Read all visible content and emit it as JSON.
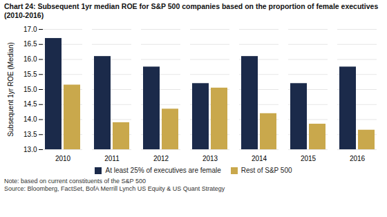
{
  "chart_data": {
    "type": "bar",
    "title": "Chart 24: Subsequent 1yr median ROE for S&P 500 companies based on the proportion of female executives (2010-2016)",
    "ylabel": "Subsequent 1yr ROE (Median)",
    "categories": [
      "2010",
      "2011",
      "2012",
      "2013",
      "2014",
      "2015",
      "2016"
    ],
    "series": [
      {
        "name": "At least 25% of executives are female",
        "color": "#1b2a4a",
        "values": [
          16.7,
          16.1,
          15.75,
          15.2,
          16.1,
          15.2,
          15.75
        ]
      },
      {
        "name": "Rest of S&P 500",
        "color": "#c9a84c",
        "values": [
          15.15,
          13.9,
          14.35,
          15.05,
          14.2,
          13.85,
          13.65
        ]
      }
    ],
    "ylim": [
      13.0,
      17.0
    ],
    "yticks": [
      {
        "value": 13.0,
        "label": "13.0"
      },
      {
        "value": 13.5,
        "label": "13.5"
      },
      {
        "value": 14.0,
        "label": "14.0"
      },
      {
        "value": 14.5,
        "label": "14.5"
      },
      {
        "value": 15.0,
        "label": "15.0"
      },
      {
        "value": 15.5,
        "label": "15.5"
      },
      {
        "value": 16.0,
        "label": "16.0"
      },
      {
        "value": 16.5,
        "label": "16.5"
      },
      {
        "value": 17.0,
        "label": "17.0"
      }
    ],
    "grid": true,
    "legend": "bottom",
    "annotations": [
      "Note: based on current constituents of the S&P 500",
      "Source: Bloomberg, FactSet, BofA Merrill Lynch US Equity & US Quant Strategy"
    ]
  }
}
